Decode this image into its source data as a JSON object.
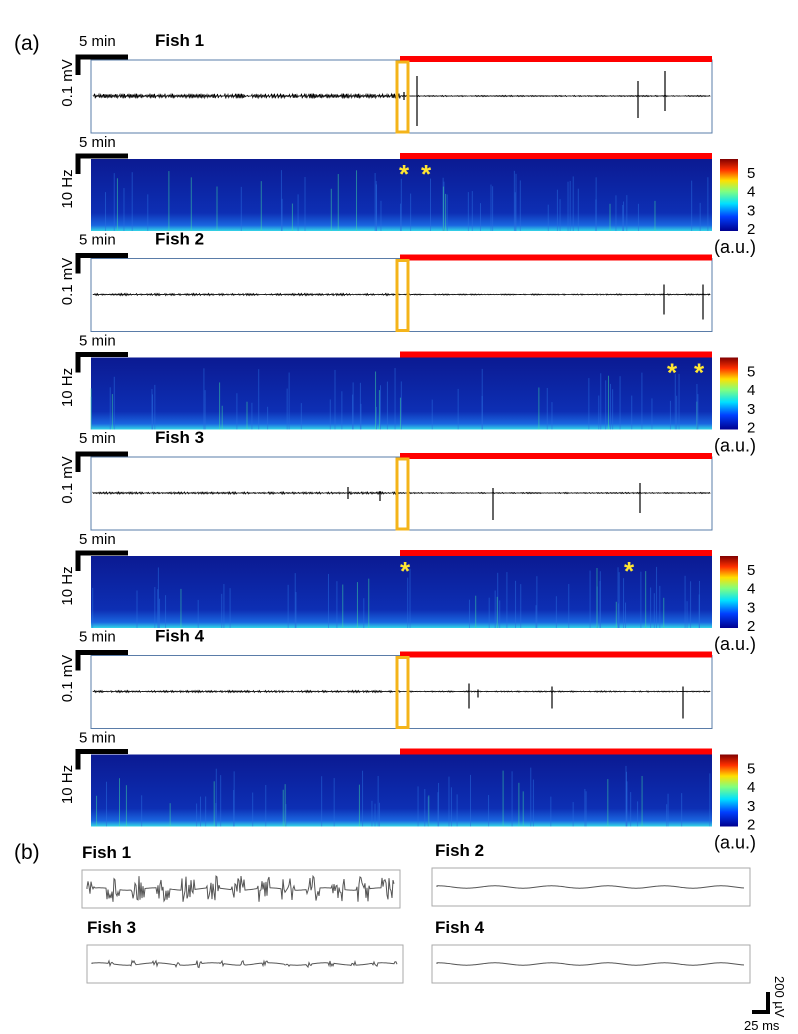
{
  "panel_a": {
    "label": "(a)",
    "fish": [
      {
        "title": "Fish 1",
        "trace_time_scale": "5 min",
        "trace_amplitude_scale": "0.1 mV",
        "spectrogram_time_scale": "5 min",
        "spectrogram_frequency_scale": "10 Hz",
        "asterisks": [
          "*",
          "*"
        ],
        "colorbar_ticks": [
          5,
          4,
          3,
          2
        ],
        "colorbar_unit": "(a.u.)"
      },
      {
        "title": "Fish 2",
        "trace_time_scale": "5 min",
        "trace_amplitude_scale": "0.1 mV",
        "spectrogram_time_scale": "5 min",
        "spectrogram_frequency_scale": "10 Hz",
        "asterisks": [
          "*",
          "*"
        ],
        "colorbar_ticks": [
          5,
          4,
          3,
          2
        ],
        "colorbar_unit": "(a.u.)"
      },
      {
        "title": "Fish 3",
        "trace_time_scale": "5 min",
        "trace_amplitude_scale": "0.1 mV",
        "spectrogram_time_scale": "5 min",
        "spectrogram_frequency_scale": "10 Hz",
        "asterisks": [
          "*",
          "*"
        ],
        "colorbar_ticks": [
          5,
          4,
          3,
          2
        ],
        "colorbar_unit": "(a.u.)"
      },
      {
        "title": "Fish 4",
        "trace_time_scale": "5 min",
        "trace_amplitude_scale": "0.1 mV",
        "spectrogram_time_scale": "5 min",
        "spectrogram_frequency_scale": "10 Hz",
        "asterisks": [],
        "colorbar_ticks": [
          5,
          4,
          3,
          2
        ],
        "colorbar_unit": "(a.u.)"
      }
    ]
  },
  "panel_b": {
    "label": "(b)",
    "fish": [
      "Fish 1",
      "Fish 2",
      "Fish 3",
      "Fish 4"
    ],
    "time_scale": "25 ms",
    "amplitude_scale": "200 µV"
  }
}
